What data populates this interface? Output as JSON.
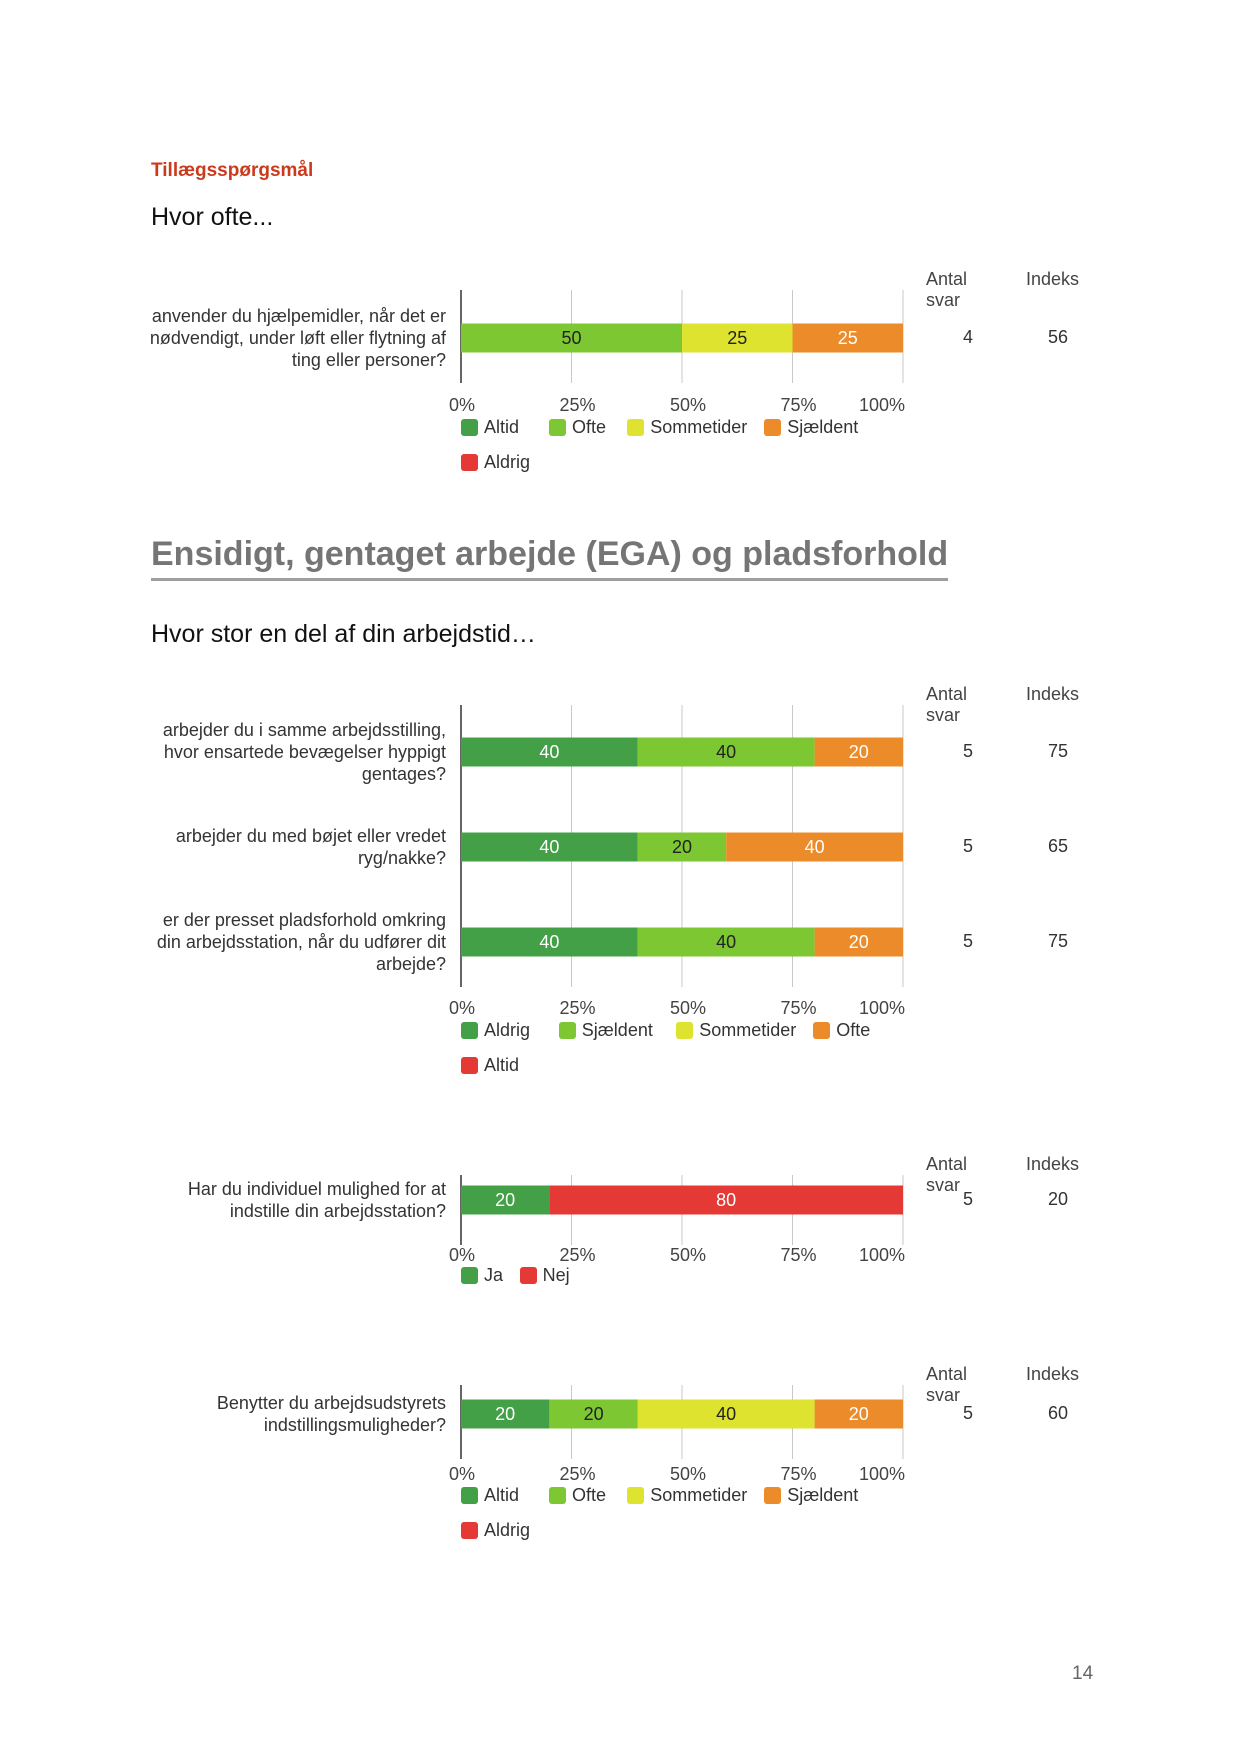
{
  "section_label": "Tillægsspørgsmål",
  "q1_heading": "Hvor ofte...",
  "section_title": "Ensidigt, gentaget arbejde (EGA) og pladsforhold",
  "q2_heading": "Hvor stor en del af din arbejdstid…",
  "page_number": "14",
  "colors": {
    "dark_green": "#43a047",
    "light_green": "#7cc732",
    "yellow": "#dde32e",
    "orange": "#ec8b29",
    "red": "#e53935"
  },
  "chart_data": [
    {
      "type": "bar",
      "orientation": "horizontal",
      "stacked": true,
      "xlim": [
        0,
        100
      ],
      "ticks": [
        "0%",
        "25%",
        "50%",
        "75%",
        "100%"
      ],
      "columns": [
        "Antal svar",
        "Indeks"
      ],
      "categories": [
        "anvender du hjælpemidler, når det er nødvendigt, under løft eller flytning af ting eller personer?"
      ],
      "series": [
        {
          "name": "Altid",
          "color": "#43a047",
          "values": [
            0
          ]
        },
        {
          "name": "Ofte",
          "color": "#7cc732",
          "values": [
            50
          ]
        },
        {
          "name": "Sommetider",
          "color": "#dde32e",
          "values": [
            25
          ]
        },
        {
          "name": "Sjældent",
          "color": "#ec8b29",
          "values": [
            25
          ]
        },
        {
          "name": "Aldrig",
          "color": "#e53935",
          "values": [
            0
          ]
        }
      ],
      "antal_svar": [
        "4"
      ],
      "indeks": [
        "56"
      ],
      "legend": "bottom"
    },
    {
      "type": "bar",
      "orientation": "horizontal",
      "stacked": true,
      "xlim": [
        0,
        100
      ],
      "ticks": [
        "0%",
        "25%",
        "50%",
        "75%",
        "100%"
      ],
      "columns": [
        "Antal svar",
        "Indeks"
      ],
      "categories": [
        "arbejder du i samme arbejdsstilling, hvor ensartede bevægelser hyppigt gentages?",
        "arbejder du med bøjet eller vredet ryg/nakke?",
        "er der presset pladsforhold omkring din arbejdsstation, når du udfører dit arbejde?"
      ],
      "series": [
        {
          "name": "Aldrig",
          "color": "#43a047",
          "values": [
            40,
            40,
            40
          ]
        },
        {
          "name": "Sjældent",
          "color": "#7cc732",
          "values": [
            40,
            20,
            40
          ]
        },
        {
          "name": "Sommetider",
          "color": "#dde32e",
          "values": [
            0,
            0,
            0
          ]
        },
        {
          "name": "Ofte",
          "color": "#ec8b29",
          "values": [
            20,
            40,
            20
          ]
        },
        {
          "name": "Altid",
          "color": "#e53935",
          "values": [
            0,
            0,
            0
          ]
        }
      ],
      "antal_svar": [
        "5",
        "5",
        "5"
      ],
      "indeks": [
        "75",
        "65",
        "75"
      ],
      "legend": "bottom"
    },
    {
      "type": "bar",
      "orientation": "horizontal",
      "stacked": true,
      "xlim": [
        0,
        100
      ],
      "ticks": [
        "0%",
        "25%",
        "50%",
        "75%",
        "100%"
      ],
      "columns": [
        "Antal svar",
        "Indeks"
      ],
      "categories": [
        "Har du individuel mulighed for at indstille din arbejdsstation?"
      ],
      "series": [
        {
          "name": "Ja",
          "color": "#43a047",
          "values": [
            20
          ]
        },
        {
          "name": "Nej",
          "color": "#e53935",
          "values": [
            80
          ]
        }
      ],
      "antal_svar": [
        "5"
      ],
      "indeks": [
        "20"
      ],
      "legend": "bottom"
    },
    {
      "type": "bar",
      "orientation": "horizontal",
      "stacked": true,
      "xlim": [
        0,
        100
      ],
      "ticks": [
        "0%",
        "25%",
        "50%",
        "75%",
        "100%"
      ],
      "columns": [
        "Antal svar",
        "Indeks"
      ],
      "categories": [
        "Benytter du arbejdsudstyrets indstillingsmuligheder?"
      ],
      "series": [
        {
          "name": "Altid",
          "color": "#43a047",
          "values": [
            20
          ]
        },
        {
          "name": "Ofte",
          "color": "#7cc732",
          "values": [
            20
          ]
        },
        {
          "name": "Sommetider",
          "color": "#dde32e",
          "values": [
            40
          ]
        },
        {
          "name": "Sjældent",
          "color": "#ec8b29",
          "values": [
            20
          ]
        },
        {
          "name": "Aldrig",
          "color": "#e53935",
          "values": [
            0
          ]
        }
      ],
      "antal_svar": [
        "5"
      ],
      "indeks": [
        "60"
      ],
      "legend": "bottom"
    }
  ]
}
